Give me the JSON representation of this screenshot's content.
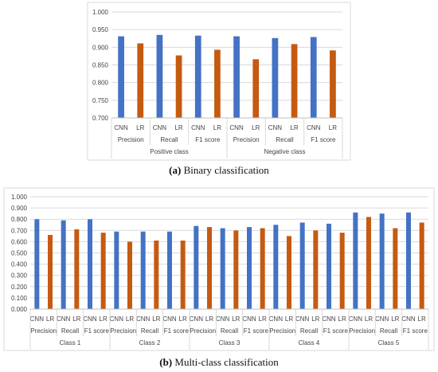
{
  "captions": {
    "a_label": "(a)",
    "a_text": "Binary classification",
    "b_label": "(b)",
    "b_text": "Multi-class classification"
  },
  "chart_data": [
    {
      "type": "bar",
      "ylim": [
        0.7,
        1.0
      ],
      "yticks": [
        0.7,
        0.75,
        0.8,
        0.85,
        0.9,
        0.95,
        1.0
      ],
      "grid": true,
      "legend": "none",
      "colors": {
        "CNN": "#4472c4",
        "LR": "#c55a11"
      },
      "categories": [
        "CNN",
        "LR",
        "CNN",
        "LR",
        "CNN",
        "LR",
        "CNN",
        "LR",
        "CNN",
        "LR",
        "CNN",
        "LR"
      ],
      "metric_groups": [
        {
          "label": "Precision",
          "span": 2
        },
        {
          "label": "Recall",
          "span": 2
        },
        {
          "label": "F1 score",
          "span": 2
        },
        {
          "label": "Precision",
          "span": 2
        },
        {
          "label": "Recall",
          "span": 2
        },
        {
          "label": "F1 score",
          "span": 2
        }
      ],
      "class_groups": [
        {
          "label": "Positive class",
          "span": 6
        },
        {
          "label": "Negative class",
          "span": 6
        }
      ],
      "values": [
        0.931,
        0.911,
        0.935,
        0.877,
        0.933,
        0.893,
        0.931,
        0.866,
        0.926,
        0.909,
        0.929,
        0.891
      ]
    },
    {
      "type": "bar",
      "ylim": [
        0.0,
        1.0
      ],
      "yticks": [
        0.0,
        0.1,
        0.2,
        0.3,
        0.4,
        0.5,
        0.6,
        0.7,
        0.8,
        0.9,
        1.0
      ],
      "grid": true,
      "legend": "none",
      "colors": {
        "CNN": "#4472c4",
        "LR": "#c55a11"
      },
      "categories": [
        "CNN",
        "LR",
        "CNN",
        "LR",
        "CNN",
        "LR",
        "CNN",
        "LR",
        "CNN",
        "LR",
        "CNN",
        "LR",
        "CNN",
        "LR",
        "CNN",
        "LR",
        "CNN",
        "LR",
        "CNN",
        "LR",
        "CNN",
        "LR",
        "CNN",
        "LR",
        "CNN",
        "LR",
        "CNN",
        "LR",
        "CNN",
        "LR"
      ],
      "metric_groups": [
        {
          "label": "Precision",
          "span": 2
        },
        {
          "label": "Recall",
          "span": 2
        },
        {
          "label": "F1 score",
          "span": 2
        },
        {
          "label": "Precision",
          "span": 2
        },
        {
          "label": "Recall",
          "span": 2
        },
        {
          "label": "F1 score",
          "span": 2
        },
        {
          "label": "Precision",
          "span": 2
        },
        {
          "label": "Recall",
          "span": 2
        },
        {
          "label": "F1 score",
          "span": 2
        },
        {
          "label": "Precision",
          "span": 2
        },
        {
          "label": "Recall",
          "span": 2
        },
        {
          "label": "F1 score",
          "span": 2
        },
        {
          "label": "Precision",
          "span": 2
        },
        {
          "label": "Recall",
          "span": 2
        },
        {
          "label": "F1 score",
          "span": 2
        }
      ],
      "class_groups": [
        {
          "label": "Class 1",
          "span": 6
        },
        {
          "label": "Class 2",
          "span": 6
        },
        {
          "label": "Class 3",
          "span": 6
        },
        {
          "label": "Class 4",
          "span": 6
        },
        {
          "label": "Class 5",
          "span": 6
        }
      ],
      "values": [
        0.8,
        0.66,
        0.79,
        0.71,
        0.8,
        0.68,
        0.69,
        0.6,
        0.69,
        0.61,
        0.69,
        0.61,
        0.74,
        0.73,
        0.72,
        0.7,
        0.73,
        0.72,
        0.75,
        0.65,
        0.77,
        0.7,
        0.76,
        0.68,
        0.86,
        0.82,
        0.85,
        0.72,
        0.86,
        0.77
      ]
    }
  ]
}
